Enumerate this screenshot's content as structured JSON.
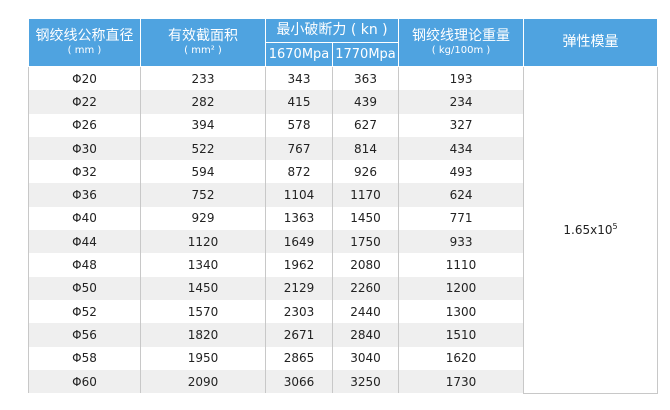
{
  "table": {
    "header": {
      "diameter": "钢绞线公称直径",
      "diameter_unit": "( mm )",
      "area": "有效截面积",
      "area_unit": "( mm² )",
      "force": "最小破断力 ( kn )",
      "force_1670": "1670Mpa",
      "force_1770": "1770Mpa",
      "weight": "钢绞线理论重量",
      "weight_unit": "( kg/100m )",
      "elastic": "弹性模量"
    },
    "rows": [
      [
        "Φ20",
        233,
        343,
        363,
        193
      ],
      [
        "Φ22",
        282,
        415,
        439,
        234
      ],
      [
        "Φ26",
        394,
        578,
        627,
        327
      ],
      [
        "Φ30",
        522,
        767,
        814,
        434
      ],
      [
        "Φ32",
        594,
        872,
        926,
        493
      ],
      [
        "Φ36",
        752,
        1104,
        1170,
        624
      ],
      [
        "Φ40",
        929,
        1363,
        1450,
        771
      ],
      [
        "Φ44",
        1120,
        1649,
        1750,
        933
      ],
      [
        "Φ48",
        1340,
        1962,
        2080,
        1110
      ],
      [
        "Φ50",
        1450,
        2129,
        2260,
        1200
      ],
      [
        "Φ52",
        1570,
        2303,
        2440,
        1300
      ],
      [
        "Φ56",
        1820,
        2671,
        2840,
        1510
      ],
      [
        "Φ58",
        1950,
        2865,
        3040,
        1620
      ],
      [
        "Φ60",
        2090,
        3066,
        3250,
        1730
      ]
    ],
    "elastic_base": "1.65x10",
    "elastic_exp": "5"
  }
}
